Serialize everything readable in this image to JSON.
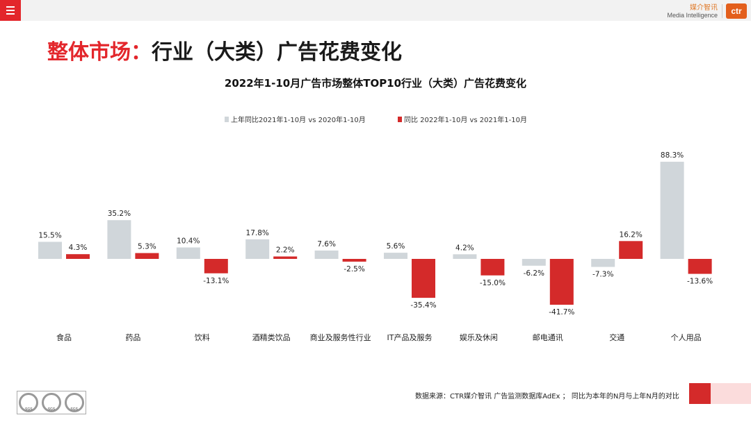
{
  "header": {
    "brand_cn": "媒介智讯",
    "brand_en": "Media Intelligence",
    "logo_text": "ctr"
  },
  "page_title": {
    "part1": "整体市场：",
    "part2": "行业（大类）广告花费变化"
  },
  "footer": {
    "source": "数据来源：CTR媒介智讯 广告监测数据库AdEx ； 同比为本年的N月与上年N月的对比",
    "cert_label": "SGS"
  },
  "colors": {
    "accent": "#e3262b",
    "series_prev": "#d0d6da",
    "series_curr": "#d42a2a"
  },
  "chart_data": {
    "type": "bar",
    "title": "2022年1-10月广告市场整体TOP10行业（大类）广告花费变化",
    "categories": [
      "食品",
      "药品",
      "饮料",
      "酒精类饮品",
      "商业及服务性行业",
      "IT产品及服务",
      "娱乐及休闲",
      "邮电通讯",
      "交通",
      "个人用品"
    ],
    "series": [
      {
        "name": "上年同比2021年1-10月  vs  2020年1-10月",
        "values": [
          15.5,
          35.2,
          10.4,
          17.8,
          7.6,
          5.6,
          4.2,
          -6.2,
          -7.3,
          88.3
        ]
      },
      {
        "name": "同比 2022年1-10月  vs  2021年1-10月",
        "values": [
          4.3,
          5.3,
          -13.1,
          2.2,
          -2.5,
          -35.4,
          -15.0,
          -41.7,
          16.2,
          -13.6
        ]
      }
    ],
    "value_format": "%",
    "legend_position": "top",
    "grid": false
  }
}
